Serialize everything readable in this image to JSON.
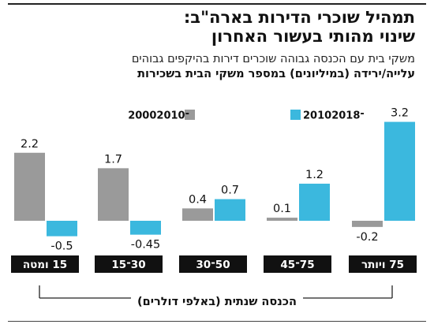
{
  "title_line1": "תמהיל שוכרי הדירות בארה\"ב:",
  "title_line2": "שינוי מהותי בעשור האחרון",
  "subtitle": "משקי בית עם הכנסה גבוהה שוכרים דירות בהיקפים גבוהים",
  "measure": "עלייה/ירידה (במיליונים) במספר משקי הבית בשכירות",
  "colors": {
    "series_2010_2018": "#3bb8de",
    "series_2000_2010": "#9a9a9a",
    "category_box": "#111111"
  },
  "chart_data": {
    "type": "bar",
    "categories": [
      "15 ומטה",
      "30־15",
      "50־30",
      "75־45",
      "75 ויותר"
    ],
    "series": [
      {
        "name": "2000־2010",
        "values": [
          2.2,
          1.7,
          0.4,
          0.1,
          -0.2
        ],
        "value_labels": [
          "2.2",
          "1.7",
          "0.4",
          "0.1",
          "-0.2"
        ]
      },
      {
        "name": "2010־2018",
        "values": [
          -0.5,
          -0.45,
          0.7,
          1.2,
          3.2
        ],
        "value_labels": [
          "-0.5",
          "-0.45",
          "0.7",
          "1.2",
          "3.2"
        ]
      }
    ],
    "xlabel": "הכנסה שנתית (באלפי דולרים)",
    "ylabel": "",
    "ylim": [
      -0.5,
      3.2
    ],
    "grid": false,
    "legend": "top"
  }
}
